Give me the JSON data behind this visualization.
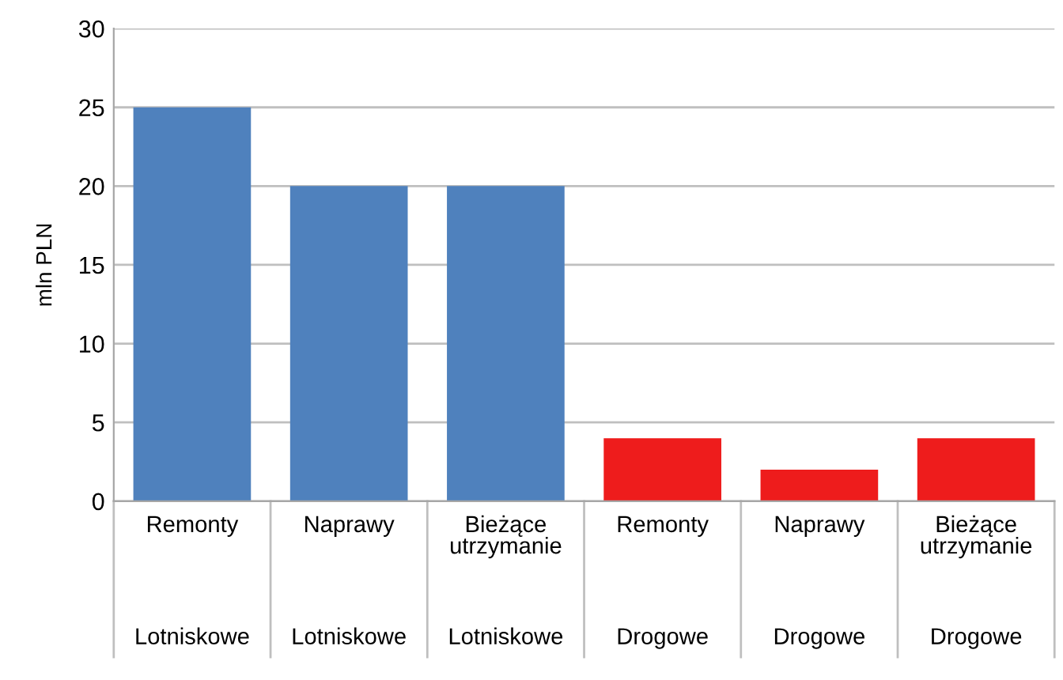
{
  "chart_data": {
    "type": "bar",
    "ylabel": "mln PLN",
    "categories": [
      "Remonty\nLotniskowe",
      "Naprawy\nLotniskowe",
      "Bieżące\nutrzymanie\nLotniskowe",
      "Remonty\nDrogowe",
      "Naprawy\nDrogowe",
      "Bieżące\nutrzymanie\nDrogowe"
    ],
    "values": [
      25,
      20,
      20,
      4,
      2,
      4
    ],
    "colors": [
      "#4f81bd",
      "#4f81bd",
      "#4f81bd",
      "#ee1c1c",
      "#ee1c1c",
      "#ee1c1c"
    ],
    "ylim": [
      0,
      30
    ],
    "yticks": [
      0,
      5,
      10,
      15,
      20,
      25,
      30
    ],
    "grid": "y",
    "legend": false
  }
}
